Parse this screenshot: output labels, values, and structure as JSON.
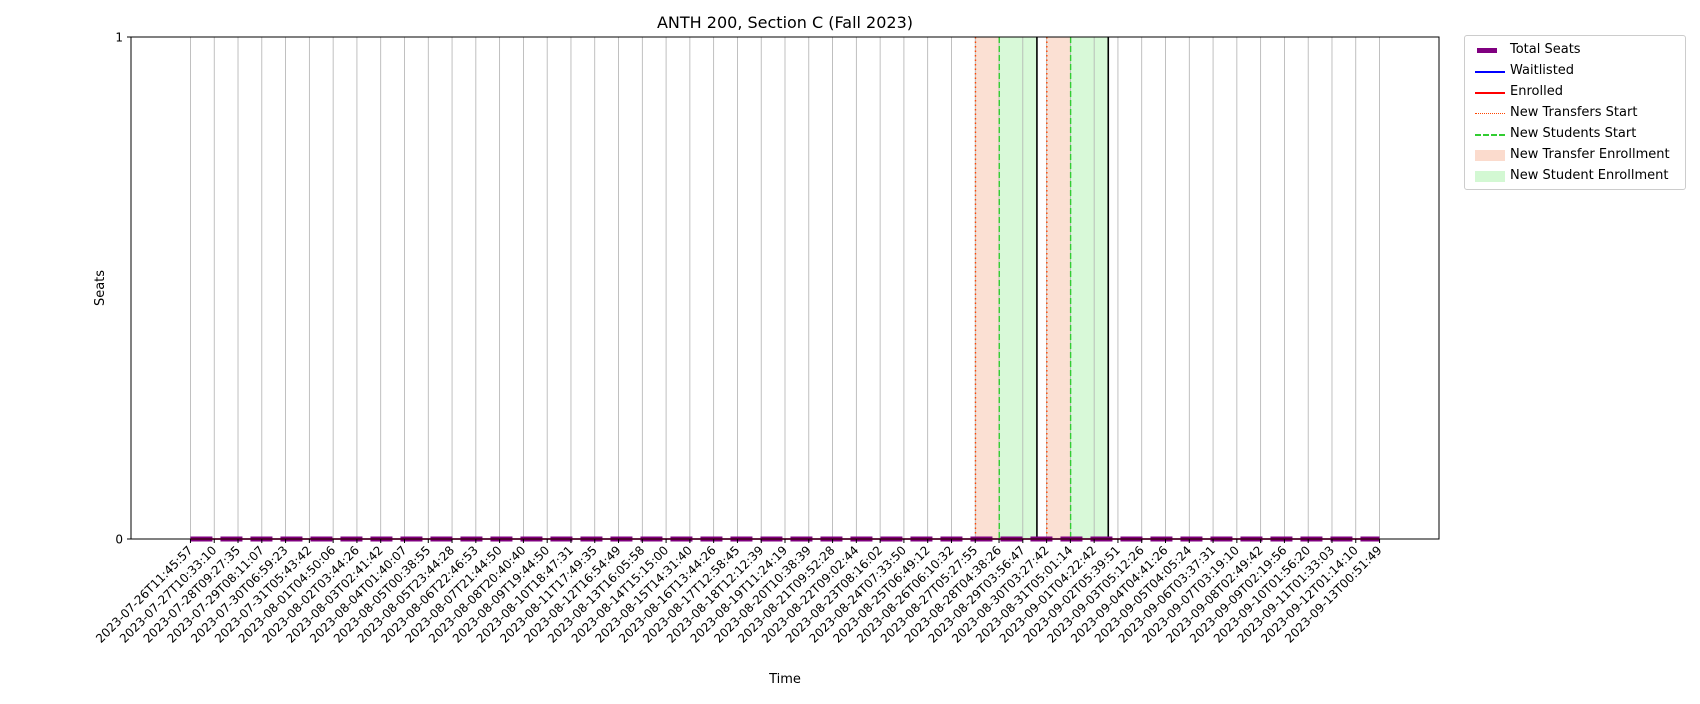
{
  "chart_data": {
    "type": "line",
    "title": "ANTH 200, Section C (Fall 2023)",
    "xlabel": "Time",
    "ylabel": "Seats",
    "ylim": [
      0,
      1
    ],
    "y_ticks": [
      "0",
      "1"
    ],
    "grid": "vertical",
    "legend_position": "outside-top-right",
    "x": [
      "2023-07-26T11:45:57",
      "2023-07-27T10:33:10",
      "2023-07-28T09:27:35",
      "2023-07-29T08:11:07",
      "2023-07-30T06:59:23",
      "2023-07-31T05:43:42",
      "2023-08-01T04:50:06",
      "2023-08-02T03:44:26",
      "2023-08-03T02:41:42",
      "2023-08-04T01:40:07",
      "2023-08-05T00:38:55",
      "2023-08-05T23:44:28",
      "2023-08-06T22:46:53",
      "2023-08-07T21:44:50",
      "2023-08-08T20:40:40",
      "2023-08-09T19:44:50",
      "2023-08-10T18:47:31",
      "2023-08-11T17:49:35",
      "2023-08-12T16:54:49",
      "2023-08-13T16:05:58",
      "2023-08-14T15:15:00",
      "2023-08-15T14:31:40",
      "2023-08-16T13:44:26",
      "2023-08-17T12:58:45",
      "2023-08-18T12:12:39",
      "2023-08-19T11:24:19",
      "2023-08-20T10:38:39",
      "2023-08-21T09:52:28",
      "2023-08-22T09:02:44",
      "2023-08-23T08:16:02",
      "2023-08-24T07:33:50",
      "2023-08-25T06:49:12",
      "2023-08-26T06:10:32",
      "2023-08-27T05:27:55",
      "2023-08-28T04:38:26",
      "2023-08-29T03:56:47",
      "2023-08-30T03:27:42",
      "2023-08-31T05:01:14",
      "2023-09-01T04:22:42",
      "2023-09-02T05:39:51",
      "2023-09-03T05:12:26",
      "2023-09-04T04:41:26",
      "2023-09-05T04:05:24",
      "2023-09-06T03:37:31",
      "2023-09-07T03:19:10",
      "2023-09-08T02:49:42",
      "2023-09-09T02:19:56",
      "2023-09-10T01:56:20",
      "2023-09-11T01:33:03",
      "2023-09-12T01:14:10",
      "2023-09-13T00:51:49"
    ],
    "series": [
      {
        "name": "Total Seats",
        "color": "#800080",
        "style": "thick-solid",
        "values": [
          0,
          0,
          0,
          0,
          0,
          0,
          0,
          0,
          0,
          0,
          0,
          0,
          0,
          0,
          0,
          0,
          0,
          0,
          0,
          0,
          0,
          0,
          0,
          0,
          0,
          0,
          0,
          0,
          0,
          0,
          0,
          0,
          0,
          0,
          0,
          0,
          0,
          0,
          0,
          0,
          0,
          0,
          0,
          0,
          0,
          0,
          0,
          0,
          0,
          0,
          0
        ]
      },
      {
        "name": "Waitlisted",
        "color": "#0000ff",
        "style": "solid",
        "values": [
          0,
          0,
          0,
          0,
          0,
          0,
          0,
          0,
          0,
          0,
          0,
          0,
          0,
          0,
          0,
          0,
          0,
          0,
          0,
          0,
          0,
          0,
          0,
          0,
          0,
          0,
          0,
          0,
          0,
          0,
          0,
          0,
          0,
          0,
          0,
          0,
          0,
          0,
          0,
          0,
          0,
          0,
          0,
          0,
          0,
          0,
          0,
          0,
          0,
          0,
          0
        ]
      },
      {
        "name": "Enrolled",
        "color": "#ff0000",
        "style": "solid",
        "values": [
          0,
          0,
          0,
          0,
          0,
          0,
          0,
          0,
          0,
          0,
          0,
          0,
          0,
          0,
          0,
          0,
          0,
          0,
          0,
          0,
          0,
          0,
          0,
          0,
          0,
          0,
          0,
          0,
          0,
          0,
          0,
          0,
          0,
          0,
          0,
          0,
          0,
          0,
          0,
          0,
          0,
          0,
          0,
          0,
          0,
          0,
          0,
          0,
          0,
          0,
          0
        ]
      }
    ],
    "markers": [
      {
        "name": "New Transfers Start",
        "color": "#ff4500",
        "style": "dotted",
        "at": [
          "2023-08-28T12:00:00",
          "2023-08-31T12:00:00"
        ]
      },
      {
        "name": "New Students Start",
        "color": "#32cd32",
        "style": "dashed",
        "at": [
          "2023-08-29T12:00:00",
          "2023-09-01T12:00:00"
        ]
      }
    ],
    "spans": [
      {
        "name": "New Transfer Enrollment",
        "color": "#f4a582",
        "ranges": [
          [
            "2023-08-28T12:00:00",
            "2023-08-29T12:00:00"
          ],
          [
            "2023-08-31T12:00:00",
            "2023-09-01T12:00:00"
          ]
        ]
      },
      {
        "name": "New Student Enrollment",
        "color": "#90ee90",
        "ranges": [
          [
            "2023-08-29T12:00:00",
            "2023-08-31T02:00:00"
          ],
          [
            "2023-09-01T12:00:00",
            "2023-09-03T02:00:00"
          ]
        ]
      }
    ],
    "boundaries": [
      "2023-08-31T02:00:00",
      "2023-09-03T02:00:00"
    ]
  },
  "legend": [
    {
      "label": "Total Seats",
      "icon": "thick-line",
      "color": "#800080"
    },
    {
      "label": "Waitlisted",
      "icon": "line",
      "color": "#0000ff"
    },
    {
      "label": "Enrolled",
      "icon": "line",
      "color": "#ff0000"
    },
    {
      "label": "New Transfers Start",
      "icon": "dotted-line",
      "color": "#ff4500"
    },
    {
      "label": "New Students Start",
      "icon": "dashed-line",
      "color": "#32cd32"
    },
    {
      "label": "New Transfer Enrollment",
      "icon": "patch",
      "color": "#f4a582"
    },
    {
      "label": "New Student Enrollment",
      "icon": "patch",
      "color": "#90ee90"
    }
  ]
}
